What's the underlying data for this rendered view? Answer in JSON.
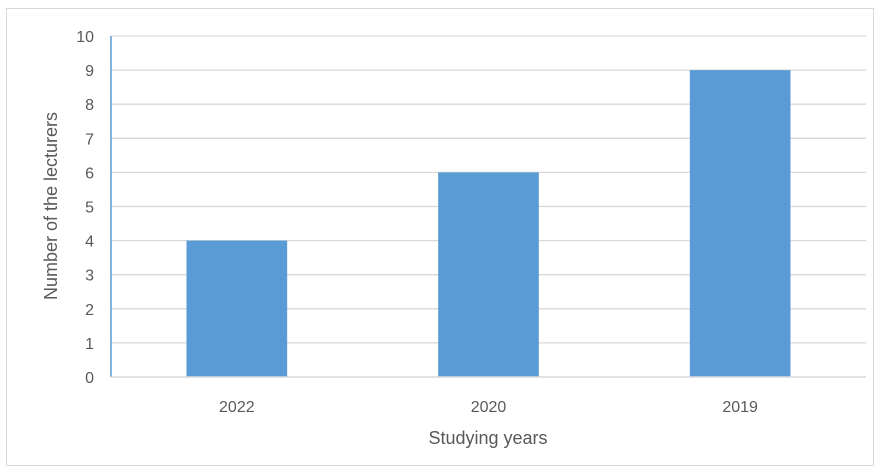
{
  "chart_data": {
    "type": "bar",
    "categories": [
      "2022",
      "2020",
      "2019"
    ],
    "values": [
      4,
      6,
      9
    ],
    "title": "",
    "xlabel": "Studying years",
    "ylabel": "Number of the lecturers",
    "ylim": [
      0,
      10
    ],
    "yticks": [
      0,
      1,
      2,
      3,
      4,
      5,
      6,
      7,
      8,
      9,
      10
    ],
    "grid": true,
    "bar_color": "#5b9bd5",
    "grid_color": "#d9d9d9",
    "axis_color": "#5b9bd5"
  }
}
